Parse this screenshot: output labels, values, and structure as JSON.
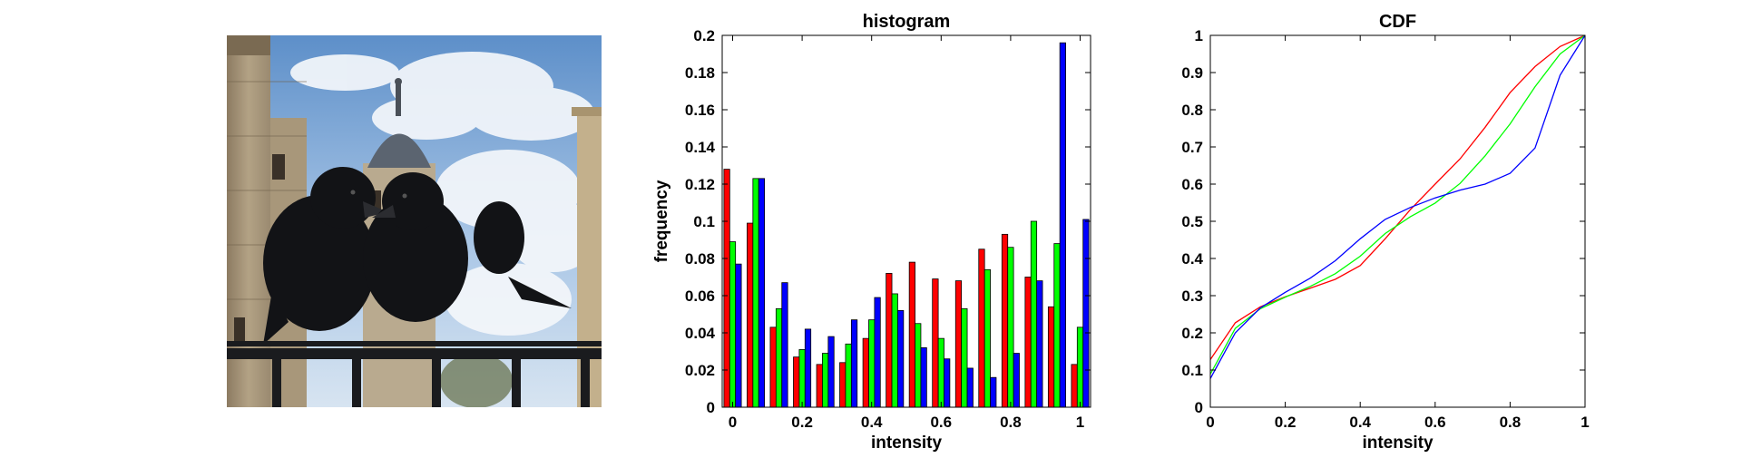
{
  "photo": {
    "description_icon": "two-ravens-on-railing-photo"
  },
  "chart_data": [
    {
      "type": "bar",
      "title": "histogram",
      "xlabel": "intensity",
      "ylabel": "frequency",
      "xlim": [
        -0.03,
        1.03
      ],
      "ylim": [
        0,
        0.2
      ],
      "xticks": [
        0,
        0.2,
        0.4,
        0.6,
        0.8,
        1
      ],
      "xtick_labels": [
        "0",
        "0.2",
        "0.4",
        "0.6",
        "0.8",
        "1"
      ],
      "yticks": [
        0,
        0.02,
        0.04,
        0.06,
        0.08,
        0.1,
        0.12,
        0.14,
        0.16,
        0.18,
        0.2
      ],
      "ytick_labels": [
        "0",
        "0.02",
        "0.04",
        "0.06",
        "0.08",
        "0.1",
        "0.12",
        "0.14",
        "0.16",
        "0.18",
        "0.2"
      ],
      "x": [
        0,
        0.0667,
        0.1333,
        0.2,
        0.2667,
        0.3333,
        0.4,
        0.4667,
        0.5333,
        0.6,
        0.6667,
        0.7333,
        0.8,
        0.8667,
        0.9333,
        1
      ],
      "series": [
        {
          "color": "#ff0000",
          "values": [
            0.128,
            0.099,
            0.043,
            0.027,
            0.023,
            0.024,
            0.037,
            0.072,
            0.078,
            0.069,
            0.068,
            0.085,
            0.093,
            0.07,
            0.054,
            0.023
          ]
        },
        {
          "color": "#00ff00",
          "values": [
            0.089,
            0.123,
            0.053,
            0.031,
            0.029,
            0.034,
            0.047,
            0.061,
            0.045,
            0.037,
            0.053,
            0.074,
            0.086,
            0.1,
            0.088,
            0.043
          ]
        },
        {
          "color": "#0000ff",
          "values": [
            0.077,
            0.123,
            0.067,
            0.042,
            0.038,
            0.047,
            0.059,
            0.052,
            0.032,
            0.026,
            0.021,
            0.016,
            0.029,
            0.068,
            0.196,
            0.101
          ]
        }
      ]
    },
    {
      "type": "line",
      "title": "CDF",
      "xlabel": "intensity",
      "ylabel": "",
      "xlim": [
        0,
        1
      ],
      "ylim": [
        0,
        1
      ],
      "xticks": [
        0,
        0.2,
        0.4,
        0.6,
        0.8,
        1
      ],
      "xtick_labels": [
        "0",
        "0.2",
        "0.4",
        "0.6",
        "0.8",
        "1"
      ],
      "yticks": [
        0,
        0.1,
        0.2,
        0.3,
        0.4,
        0.5,
        0.6,
        0.7,
        0.8,
        0.9,
        1
      ],
      "ytick_labels": [
        "0",
        "0.1",
        "0.2",
        "0.3",
        "0.4",
        "0.5",
        "0.6",
        "0.7",
        "0.8",
        "0.9",
        "1"
      ],
      "x": [
        0,
        0.0667,
        0.1333,
        0.2,
        0.2667,
        0.3333,
        0.4,
        0.4667,
        0.5333,
        0.6,
        0.6667,
        0.7333,
        0.8,
        0.8667,
        0.9333,
        1
      ],
      "series": [
        {
          "color": "#ff0000",
          "values": [
            0.128,
            0.227,
            0.27,
            0.297,
            0.32,
            0.344,
            0.381,
            0.453,
            0.531,
            0.6,
            0.668,
            0.753,
            0.846,
            0.916,
            0.97,
            1.0
          ]
        },
        {
          "color": "#00ff00",
          "values": [
            0.089,
            0.212,
            0.265,
            0.296,
            0.325,
            0.359,
            0.406,
            0.467,
            0.512,
            0.549,
            0.602,
            0.676,
            0.762,
            0.862,
            0.95,
            1.0
          ]
        },
        {
          "color": "#0000ff",
          "values": [
            0.077,
            0.2,
            0.267,
            0.309,
            0.347,
            0.394,
            0.453,
            0.505,
            0.537,
            0.563,
            0.584,
            0.6,
            0.629,
            0.697,
            0.893,
            1.0
          ]
        }
      ]
    }
  ]
}
